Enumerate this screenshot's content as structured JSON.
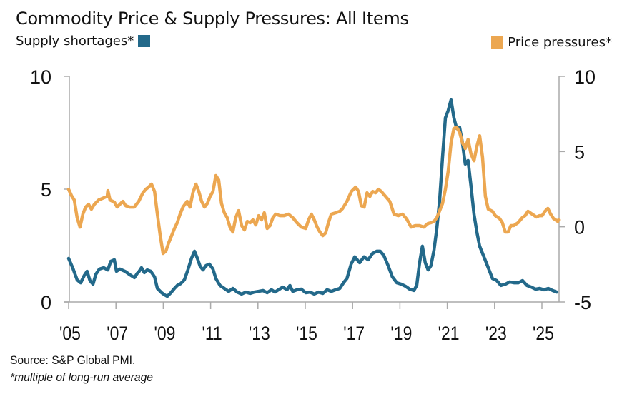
{
  "chart_data": {
    "type": "line",
    "title": "Commodity Price & Supply Pressures: All Items",
    "source": "Source: S&P Global PMI.",
    "note": "*multiple of long-run average",
    "legend": {
      "left": {
        "label": "Supply shortages*",
        "color": "#23698a"
      },
      "right": {
        "label": "Price pressures*",
        "color": "#eca751"
      }
    },
    "x_axis": {
      "range": [
        2005,
        2025.7
      ],
      "ticks": [
        2005,
        2007,
        2009,
        2011,
        2013,
        2015,
        2017,
        2019,
        2021,
        2023,
        2025
      ],
      "tick_labels": [
        "'05",
        "'07",
        "'09",
        "'11",
        "'13",
        "'15",
        "'17",
        "'19",
        "'21",
        "'23",
        "'25"
      ]
    },
    "y_left": {
      "range": [
        0,
        10
      ],
      "ticks": [
        0,
        5,
        10
      ],
      "tick_labels": [
        "0",
        "5",
        "10"
      ]
    },
    "y_right": {
      "range": [
        -5,
        10
      ],
      "ticks": [
        -5,
        0,
        5,
        10
      ],
      "tick_labels": [
        "-5",
        "0",
        "5",
        "10"
      ]
    },
    "grid": false,
    "series": [
      {
        "name": "Supply shortages*",
        "axis": "left",
        "color": "#23698a",
        "points": [
          [
            2005.0,
            1.93
          ],
          [
            2005.18,
            1.49
          ],
          [
            2005.36,
            0.98
          ],
          [
            2005.51,
            0.85
          ],
          [
            2005.66,
            1.17
          ],
          [
            2005.78,
            1.36
          ],
          [
            2005.9,
            0.95
          ],
          [
            2006.03,
            0.79
          ],
          [
            2006.15,
            1.23
          ],
          [
            2006.3,
            1.46
          ],
          [
            2006.48,
            1.52
          ],
          [
            2006.66,
            1.42
          ],
          [
            2006.78,
            1.8
          ],
          [
            2006.93,
            1.87
          ],
          [
            2007.02,
            1.36
          ],
          [
            2007.17,
            1.46
          ],
          [
            2007.38,
            1.36
          ],
          [
            2007.6,
            1.2
          ],
          [
            2007.78,
            1.08
          ],
          [
            2007.9,
            1.27
          ],
          [
            2007.96,
            1.33
          ],
          [
            2008.08,
            1.52
          ],
          [
            2008.2,
            1.3
          ],
          [
            2008.32,
            1.42
          ],
          [
            2008.47,
            1.36
          ],
          [
            2008.63,
            1.11
          ],
          [
            2008.75,
            0.6
          ],
          [
            2008.93,
            0.41
          ],
          [
            2009.05,
            0.32
          ],
          [
            2009.17,
            0.25
          ],
          [
            2009.32,
            0.41
          ],
          [
            2009.47,
            0.6
          ],
          [
            2009.59,
            0.73
          ],
          [
            2009.74,
            0.82
          ],
          [
            2009.89,
            0.98
          ],
          [
            2010.04,
            1.42
          ],
          [
            2010.19,
            1.93
          ],
          [
            2010.32,
            2.25
          ],
          [
            2010.44,
            1.93
          ],
          [
            2010.56,
            1.58
          ],
          [
            2010.68,
            1.42
          ],
          [
            2010.8,
            1.61
          ],
          [
            2010.95,
            1.68
          ],
          [
            2011.1,
            1.46
          ],
          [
            2011.22,
            1.04
          ],
          [
            2011.4,
            0.73
          ],
          [
            2011.58,
            0.6
          ],
          [
            2011.76,
            0.47
          ],
          [
            2011.94,
            0.6
          ],
          [
            2012.12,
            0.44
          ],
          [
            2012.31,
            0.35
          ],
          [
            2012.49,
            0.44
          ],
          [
            2012.67,
            0.38
          ],
          [
            2012.85,
            0.44
          ],
          [
            2013.03,
            0.47
          ],
          [
            2013.21,
            0.51
          ],
          [
            2013.39,
            0.41
          ],
          [
            2013.57,
            0.54
          ],
          [
            2013.72,
            0.44
          ],
          [
            2013.87,
            0.54
          ],
          [
            2014.05,
            0.66
          ],
          [
            2014.23,
            0.54
          ],
          [
            2014.35,
            0.73
          ],
          [
            2014.47,
            0.47
          ],
          [
            2014.65,
            0.54
          ],
          [
            2014.83,
            0.57
          ],
          [
            2015.02,
            0.41
          ],
          [
            2015.2,
            0.44
          ],
          [
            2015.38,
            0.35
          ],
          [
            2015.56,
            0.44
          ],
          [
            2015.74,
            0.38
          ],
          [
            2015.92,
            0.54
          ],
          [
            2016.1,
            0.47
          ],
          [
            2016.28,
            0.54
          ],
          [
            2016.46,
            0.6
          ],
          [
            2016.64,
            0.89
          ],
          [
            2016.76,
            1.04
          ],
          [
            2016.94,
            1.68
          ],
          [
            2017.09,
            2.0
          ],
          [
            2017.3,
            1.74
          ],
          [
            2017.48,
            2.0
          ],
          [
            2017.66,
            1.87
          ],
          [
            2017.84,
            2.15
          ],
          [
            2018.02,
            2.25
          ],
          [
            2018.17,
            2.25
          ],
          [
            2018.32,
            2.06
          ],
          [
            2018.5,
            1.61
          ],
          [
            2018.68,
            1.11
          ],
          [
            2018.87,
            0.85
          ],
          [
            2019.05,
            0.79
          ],
          [
            2019.23,
            0.7
          ],
          [
            2019.41,
            0.57
          ],
          [
            2019.59,
            0.51
          ],
          [
            2019.71,
            0.73
          ],
          [
            2019.83,
            1.74
          ],
          [
            2019.95,
            2.47
          ],
          [
            2020.07,
            1.74
          ],
          [
            2020.19,
            1.42
          ],
          [
            2020.31,
            1.61
          ],
          [
            2020.44,
            2.31
          ],
          [
            2020.56,
            3.26
          ],
          [
            2020.68,
            4.53
          ],
          [
            2020.8,
            6.42
          ],
          [
            2020.92,
            8.16
          ],
          [
            2021.04,
            8.48
          ],
          [
            2021.16,
            8.96
          ],
          [
            2021.28,
            8.16
          ],
          [
            2021.4,
            7.69
          ],
          [
            2021.52,
            7.75
          ],
          [
            2021.64,
            7.06
          ],
          [
            2021.76,
            6.11
          ],
          [
            2021.88,
            6.27
          ],
          [
            2022.0,
            5.16
          ],
          [
            2022.13,
            3.89
          ],
          [
            2022.25,
            3.1
          ],
          [
            2022.37,
            2.47
          ],
          [
            2022.55,
            2.0
          ],
          [
            2022.73,
            1.52
          ],
          [
            2022.91,
            1.04
          ],
          [
            2023.09,
            0.95
          ],
          [
            2023.27,
            0.73
          ],
          [
            2023.46,
            0.79
          ],
          [
            2023.64,
            0.89
          ],
          [
            2023.82,
            0.85
          ],
          [
            2024.0,
            0.85
          ],
          [
            2024.18,
            0.95
          ],
          [
            2024.37,
            0.73
          ],
          [
            2024.55,
            0.66
          ],
          [
            2024.73,
            0.57
          ],
          [
            2024.91,
            0.6
          ],
          [
            2025.09,
            0.54
          ],
          [
            2025.27,
            0.6
          ],
          [
            2025.45,
            0.51
          ],
          [
            2025.63,
            0.44
          ]
        ]
      },
      {
        "name": "Price pressures*",
        "axis": "right",
        "color": "#eca751",
        "points": [
          [
            2005.0,
            2.49
          ],
          [
            2005.12,
            2.07
          ],
          [
            2005.24,
            1.78
          ],
          [
            2005.36,
            0.6
          ],
          [
            2005.48,
            -0.02
          ],
          [
            2005.6,
            0.84
          ],
          [
            2005.72,
            1.31
          ],
          [
            2005.84,
            1.5
          ],
          [
            2005.96,
            1.17
          ],
          [
            2006.09,
            1.5
          ],
          [
            2006.27,
            1.78
          ],
          [
            2006.66,
            2.4
          ],
          [
            2006.63,
            2.02
          ],
          [
            2006.75,
            1.78
          ],
          [
            2006.93,
            1.64
          ],
          [
            2007.05,
            1.31
          ],
          [
            2007.17,
            1.5
          ],
          [
            2007.29,
            1.69
          ],
          [
            2007.41,
            1.4
          ],
          [
            2007.59,
            1.31
          ],
          [
            2007.77,
            1.31
          ],
          [
            2007.96,
            1.69
          ],
          [
            2008.14,
            2.26
          ],
          [
            2008.26,
            2.49
          ],
          [
            2008.38,
            2.64
          ],
          [
            2008.5,
            2.83
          ],
          [
            2008.63,
            2.35
          ],
          [
            2008.75,
            0.84
          ],
          [
            2008.87,
            -0.58
          ],
          [
            2008.99,
            -1.77
          ],
          [
            2009.11,
            -1.62
          ],
          [
            2009.23,
            -1.06
          ],
          [
            2009.35,
            -0.59
          ],
          [
            2009.47,
            -0.12
          ],
          [
            2009.59,
            0.27
          ],
          [
            2009.71,
            0.84
          ],
          [
            2009.83,
            1.31
          ],
          [
            2010.01,
            1.69
          ],
          [
            2010.13,
            1.31
          ],
          [
            2010.25,
            2.26
          ],
          [
            2010.38,
            2.83
          ],
          [
            2010.5,
            2.35
          ],
          [
            2010.62,
            1.69
          ],
          [
            2010.74,
            1.31
          ],
          [
            2010.86,
            1.55
          ],
          [
            2010.98,
            2.02
          ],
          [
            2011.1,
            2.35
          ],
          [
            2011.22,
            3.4
          ],
          [
            2011.34,
            3.11
          ],
          [
            2011.46,
            1.55
          ],
          [
            2011.58,
            0.93
          ],
          [
            2011.7,
            0.6
          ],
          [
            2011.82,
            -0.02
          ],
          [
            2011.94,
            -0.35
          ],
          [
            2012.06,
            0.6
          ],
          [
            2012.18,
            1.07
          ],
          [
            2012.31,
            0.08
          ],
          [
            2012.43,
            -0.21
          ],
          [
            2012.55,
            0.36
          ],
          [
            2012.67,
            0.27
          ],
          [
            2012.79,
            0.46
          ],
          [
            2012.91,
            0.12
          ],
          [
            2013.03,
            0.74
          ],
          [
            2013.15,
            0.46
          ],
          [
            2013.27,
            0.93
          ],
          [
            2013.39,
            -0.11
          ],
          [
            2013.51,
            0.08
          ],
          [
            2013.63,
            0.6
          ],
          [
            2013.75,
            0.84
          ],
          [
            2013.93,
            0.74
          ],
          [
            2014.11,
            0.74
          ],
          [
            2014.29,
            0.84
          ],
          [
            2014.47,
            0.6
          ],
          [
            2014.65,
            0.27
          ],
          [
            2014.83,
            -0.02
          ],
          [
            2015.02,
            -0.11
          ],
          [
            2015.14,
            0.46
          ],
          [
            2015.26,
            0.84
          ],
          [
            2015.38,
            0.46
          ],
          [
            2015.5,
            -0.02
          ],
          [
            2015.62,
            -0.35
          ],
          [
            2015.74,
            -0.59
          ],
          [
            2015.86,
            -0.4
          ],
          [
            2015.98,
            0.27
          ],
          [
            2016.1,
            0.84
          ],
          [
            2016.28,
            0.93
          ],
          [
            2016.46,
            1.03
          ],
          [
            2016.58,
            1.22
          ],
          [
            2016.76,
            1.69
          ],
          [
            2016.95,
            2.35
          ],
          [
            2017.13,
            2.64
          ],
          [
            2017.25,
            2.35
          ],
          [
            2017.37,
            1.4
          ],
          [
            2017.49,
            1.31
          ],
          [
            2017.61,
            2.26
          ],
          [
            2017.73,
            2.02
          ],
          [
            2017.85,
            2.35
          ],
          [
            2017.97,
            2.26
          ],
          [
            2018.09,
            2.49
          ],
          [
            2018.21,
            2.35
          ],
          [
            2018.39,
            2.02
          ],
          [
            2018.57,
            1.69
          ],
          [
            2018.75,
            0.84
          ],
          [
            2018.93,
            0.74
          ],
          [
            2019.11,
            0.84
          ],
          [
            2019.29,
            0.5
          ],
          [
            2019.47,
            -0.02
          ],
          [
            2019.65,
            0.08
          ],
          [
            2019.83,
            0.08
          ],
          [
            2020.01,
            -0.02
          ],
          [
            2020.19,
            0.22
          ],
          [
            2020.31,
            0.27
          ],
          [
            2020.44,
            0.36
          ],
          [
            2020.56,
            0.6
          ],
          [
            2020.68,
            1.07
          ],
          [
            2020.8,
            1.55
          ],
          [
            2020.92,
            2.49
          ],
          [
            2021.04,
            3.68
          ],
          [
            2021.16,
            5.58
          ],
          [
            2021.28,
            6.53
          ],
          [
            2021.4,
            6.62
          ],
          [
            2021.52,
            6.29
          ],
          [
            2021.64,
            5.58
          ],
          [
            2021.76,
            5.2
          ],
          [
            2021.88,
            5.81
          ],
          [
            2022.0,
            4.86
          ],
          [
            2022.13,
            4.39
          ],
          [
            2022.25,
            5.34
          ],
          [
            2022.37,
            6.05
          ],
          [
            2022.49,
            4.63
          ],
          [
            2022.61,
            2.02
          ],
          [
            2022.73,
            1.17
          ],
          [
            2022.91,
            1.03
          ],
          [
            2023.03,
            0.74
          ],
          [
            2023.21,
            0.55
          ],
          [
            2023.33,
            0.27
          ],
          [
            2023.45,
            -0.35
          ],
          [
            2023.57,
            -0.35
          ],
          [
            2023.69,
            0.08
          ],
          [
            2023.81,
            0.08
          ],
          [
            2023.99,
            0.27
          ],
          [
            2024.17,
            0.6
          ],
          [
            2024.29,
            0.74
          ],
          [
            2024.41,
            1.03
          ],
          [
            2024.59,
            0.84
          ],
          [
            2024.77,
            0.65
          ],
          [
            2024.89,
            0.74
          ],
          [
            2025.01,
            0.74
          ],
          [
            2025.13,
            1.03
          ],
          [
            2025.25,
            1.22
          ],
          [
            2025.37,
            0.84
          ],
          [
            2025.49,
            0.55
          ],
          [
            2025.67,
            0.36
          ],
          [
            2025.7,
            0.46
          ]
        ]
      }
    ]
  }
}
